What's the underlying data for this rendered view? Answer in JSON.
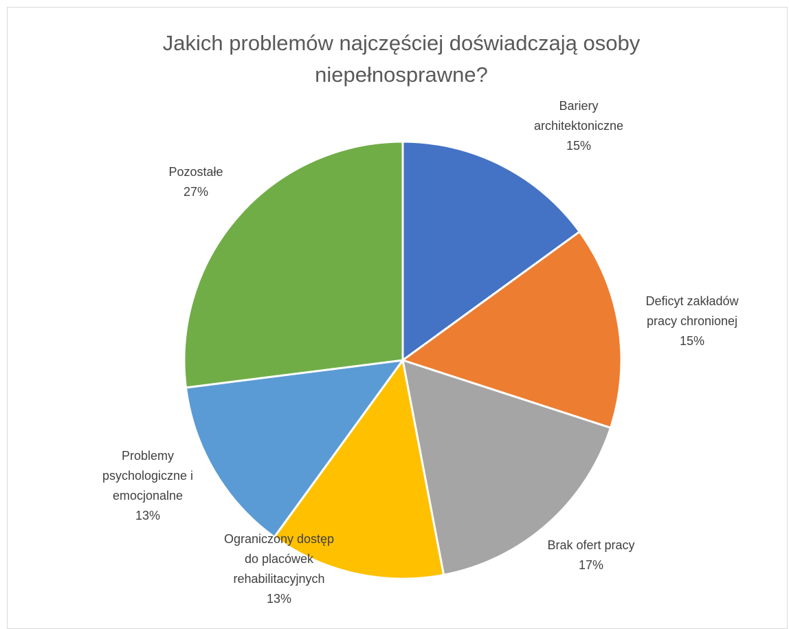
{
  "chart_data": {
    "type": "pie",
    "title": "Jakich problemów najczęściej doświadczają osoby niepełnosprawne?",
    "title_lines": [
      "Jakich problemów najczęściej doświadczają osoby",
      "niepełnosprawne?"
    ],
    "slices": [
      {
        "label": "Bariery architektoniczne",
        "label_lines": [
          "Bariery",
          "architektoniczne"
        ],
        "value": 15,
        "value_label": "15%",
        "color": "#4472C4"
      },
      {
        "label": "Deficyt zakładów pracy chronionej",
        "label_lines": [
          "Deficyt zakładów",
          "pracy chronionej"
        ],
        "value": 15,
        "value_label": "15%",
        "color": "#ED7D31"
      },
      {
        "label": "Brak ofert pracy",
        "label_lines": [
          "Brak ofert pracy"
        ],
        "value": 17,
        "value_label": "17%",
        "color": "#A5A5A5"
      },
      {
        "label": "Ograniczony dostęp do placówek rehabilitacyjnych",
        "label_lines": [
          "Ograniczony dostęp",
          "do placówek",
          "rehabilitacyjnych"
        ],
        "value": 13,
        "value_label": "13%",
        "color": "#FFC000"
      },
      {
        "label": "Problemy psychologiczne i emocjonalne",
        "label_lines": [
          "Problemy",
          "psychologiczne i",
          "emocjonalne"
        ],
        "value": 13,
        "value_label": "13%",
        "color": "#5B9BD5"
      },
      {
        "label": "Pozostałe",
        "label_lines": [
          "Pozostałe"
        ],
        "value": 27,
        "value_label": "27%",
        "color": "#70AD47"
      }
    ]
  }
}
